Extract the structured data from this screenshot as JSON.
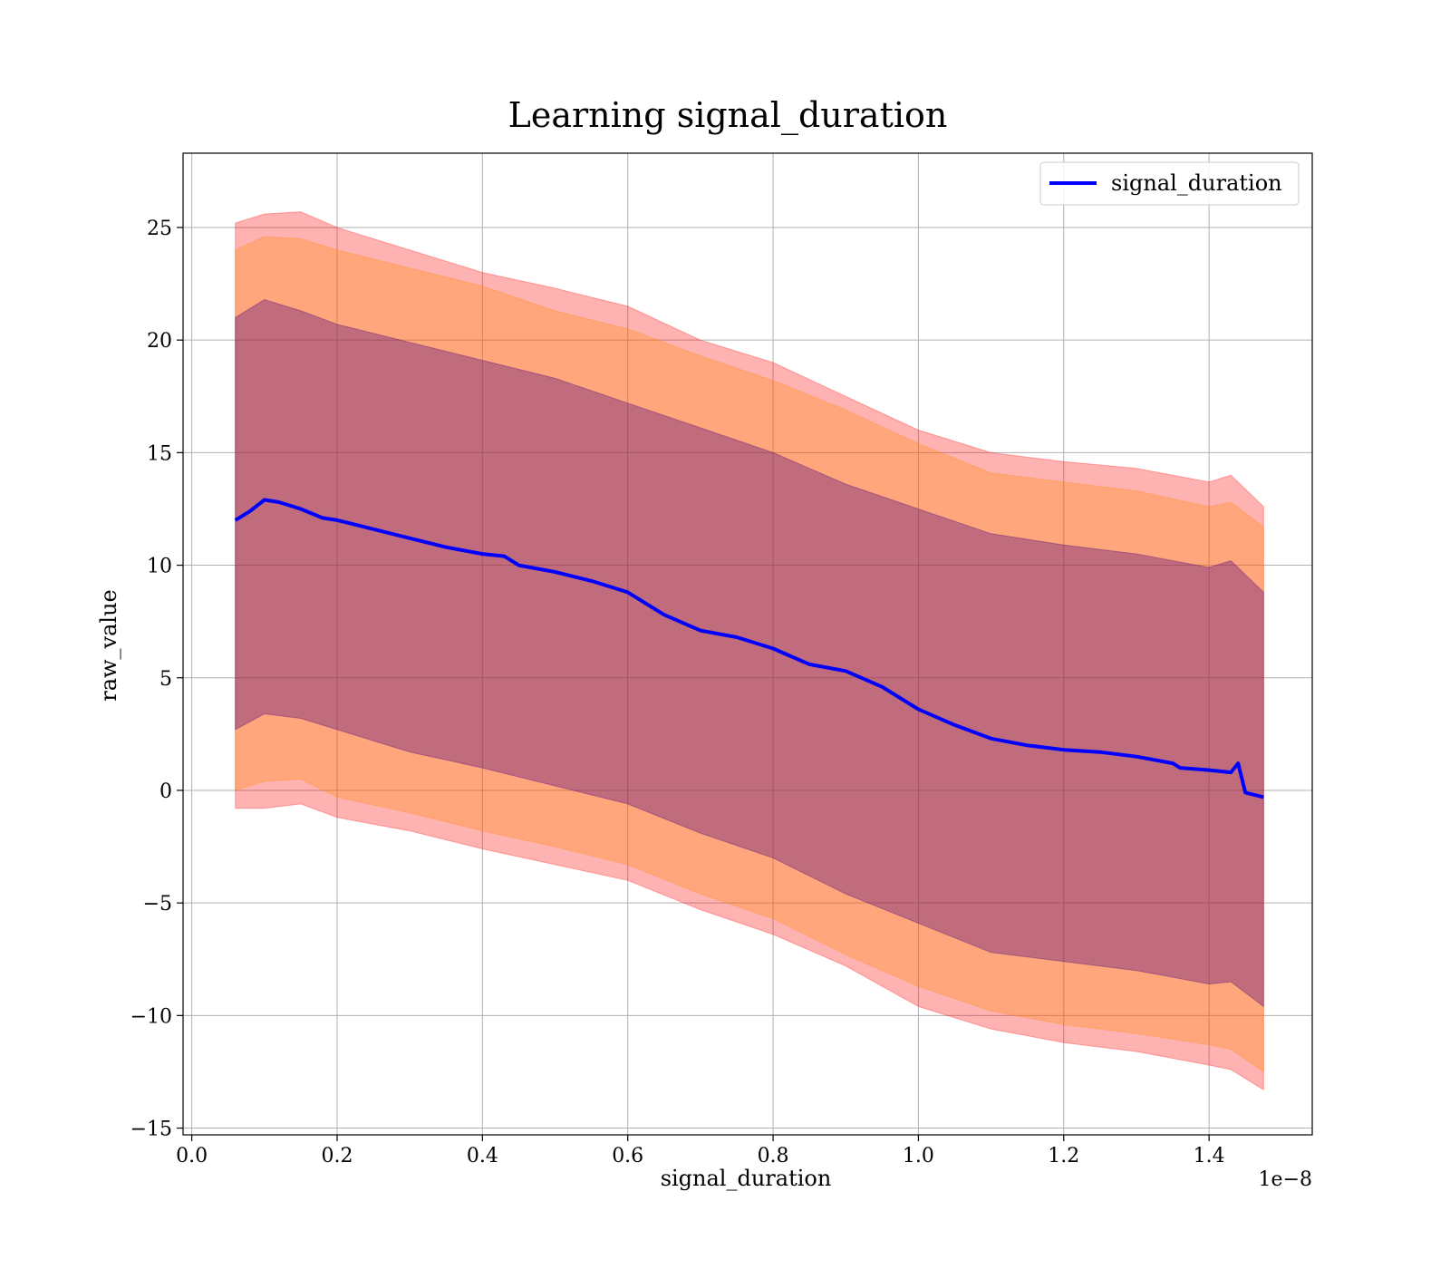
{
  "chart_data": {
    "type": "line",
    "title": "Learning signal_duration",
    "xlabel": "signal_duration",
    "ylabel": "raw_value",
    "x_offset_label": "1e−8",
    "xlim": [
      -0.012,
      1.542
    ],
    "ylim": [
      -15.3,
      28.3
    ],
    "x_ticks": [
      0.0,
      0.2,
      0.4,
      0.6,
      0.8,
      1.0,
      1.2,
      1.4
    ],
    "x_tick_labels": [
      "0.0",
      "0.2",
      "0.4",
      "0.6",
      "0.8",
      "1.0",
      "1.2",
      "1.4"
    ],
    "y_ticks": [
      -15,
      -10,
      -5,
      0,
      5,
      10,
      15,
      20,
      25
    ],
    "y_tick_labels": [
      "−15",
      "−10",
      "−5",
      "0",
      "5",
      "10",
      "15",
      "20",
      "25"
    ],
    "grid": true,
    "legend_position": "top-right",
    "series": [
      {
        "name": "signal_duration",
        "color": "#0000ff",
        "x": [
          0.06,
          0.08,
          0.1,
          0.12,
          0.15,
          0.18,
          0.2,
          0.25,
          0.3,
          0.35,
          0.4,
          0.43,
          0.45,
          0.5,
          0.55,
          0.6,
          0.65,
          0.7,
          0.75,
          0.8,
          0.85,
          0.9,
          0.95,
          1.0,
          1.05,
          1.1,
          1.15,
          1.2,
          1.25,
          1.3,
          1.35,
          1.36,
          1.4,
          1.43,
          1.44,
          1.45,
          1.475
        ],
        "y": [
          12.0,
          12.4,
          12.9,
          12.8,
          12.5,
          12.1,
          12.0,
          11.6,
          11.2,
          10.8,
          10.5,
          10.4,
          10.0,
          9.7,
          9.3,
          8.8,
          7.8,
          7.1,
          6.8,
          6.3,
          5.6,
          5.3,
          4.6,
          3.6,
          2.9,
          2.3,
          2.0,
          1.8,
          1.7,
          1.5,
          1.2,
          1.0,
          0.9,
          0.8,
          1.2,
          -0.1,
          -0.3
        ]
      }
    ],
    "bands": [
      {
        "color": "#ff0000",
        "opacity": 0.3,
        "x": [
          0.06,
          0.1,
          0.15,
          0.2,
          0.3,
          0.4,
          0.5,
          0.6,
          0.7,
          0.8,
          0.9,
          1.0,
          1.1,
          1.2,
          1.3,
          1.4,
          1.43,
          1.475
        ],
        "upper": [
          25.2,
          25.6,
          25.7,
          25.0,
          24.0,
          23.0,
          22.3,
          21.5,
          20.0,
          19.0,
          17.5,
          16.0,
          15.0,
          14.6,
          14.3,
          13.7,
          14.0,
          12.6
        ],
        "lower": [
          -0.8,
          -0.8,
          -0.6,
          -1.2,
          -1.8,
          -2.6,
          -3.3,
          -4.0,
          -5.3,
          -6.4,
          -7.8,
          -9.6,
          -10.6,
          -11.2,
          -11.6,
          -12.2,
          -12.4,
          -13.3
        ]
      },
      {
        "color": "#ff8c00",
        "opacity": 0.3,
        "x": [
          0.06,
          0.1,
          0.15,
          0.2,
          0.3,
          0.4,
          0.5,
          0.6,
          0.7,
          0.8,
          0.9,
          1.0,
          1.1,
          1.2,
          1.3,
          1.4,
          1.43,
          1.475
        ],
        "upper": [
          24.0,
          24.6,
          24.5,
          24.0,
          23.2,
          22.4,
          21.3,
          20.5,
          19.3,
          18.2,
          16.9,
          15.4,
          14.1,
          13.7,
          13.3,
          12.6,
          12.8,
          11.7
        ],
        "lower": [
          0.0,
          0.4,
          0.5,
          -0.3,
          -1.0,
          -1.8,
          -2.5,
          -3.3,
          -4.6,
          -5.7,
          -7.3,
          -8.7,
          -9.8,
          -10.4,
          -10.8,
          -11.3,
          -11.5,
          -12.5
        ]
      },
      {
        "color": "#4b0082",
        "opacity": 0.35,
        "x": [
          0.06,
          0.1,
          0.15,
          0.2,
          0.3,
          0.4,
          0.5,
          0.6,
          0.7,
          0.8,
          0.9,
          1.0,
          1.1,
          1.2,
          1.3,
          1.4,
          1.43,
          1.475
        ],
        "upper": [
          21.0,
          21.8,
          21.3,
          20.7,
          19.9,
          19.1,
          18.3,
          17.2,
          16.1,
          15.0,
          13.6,
          12.5,
          11.4,
          10.9,
          10.5,
          9.9,
          10.2,
          8.8
        ],
        "lower": [
          2.7,
          3.4,
          3.2,
          2.7,
          1.7,
          1.0,
          0.2,
          -0.6,
          -1.9,
          -3.0,
          -4.6,
          -5.9,
          -7.2,
          -7.6,
          -8.0,
          -8.6,
          -8.5,
          -9.6
        ]
      }
    ]
  }
}
